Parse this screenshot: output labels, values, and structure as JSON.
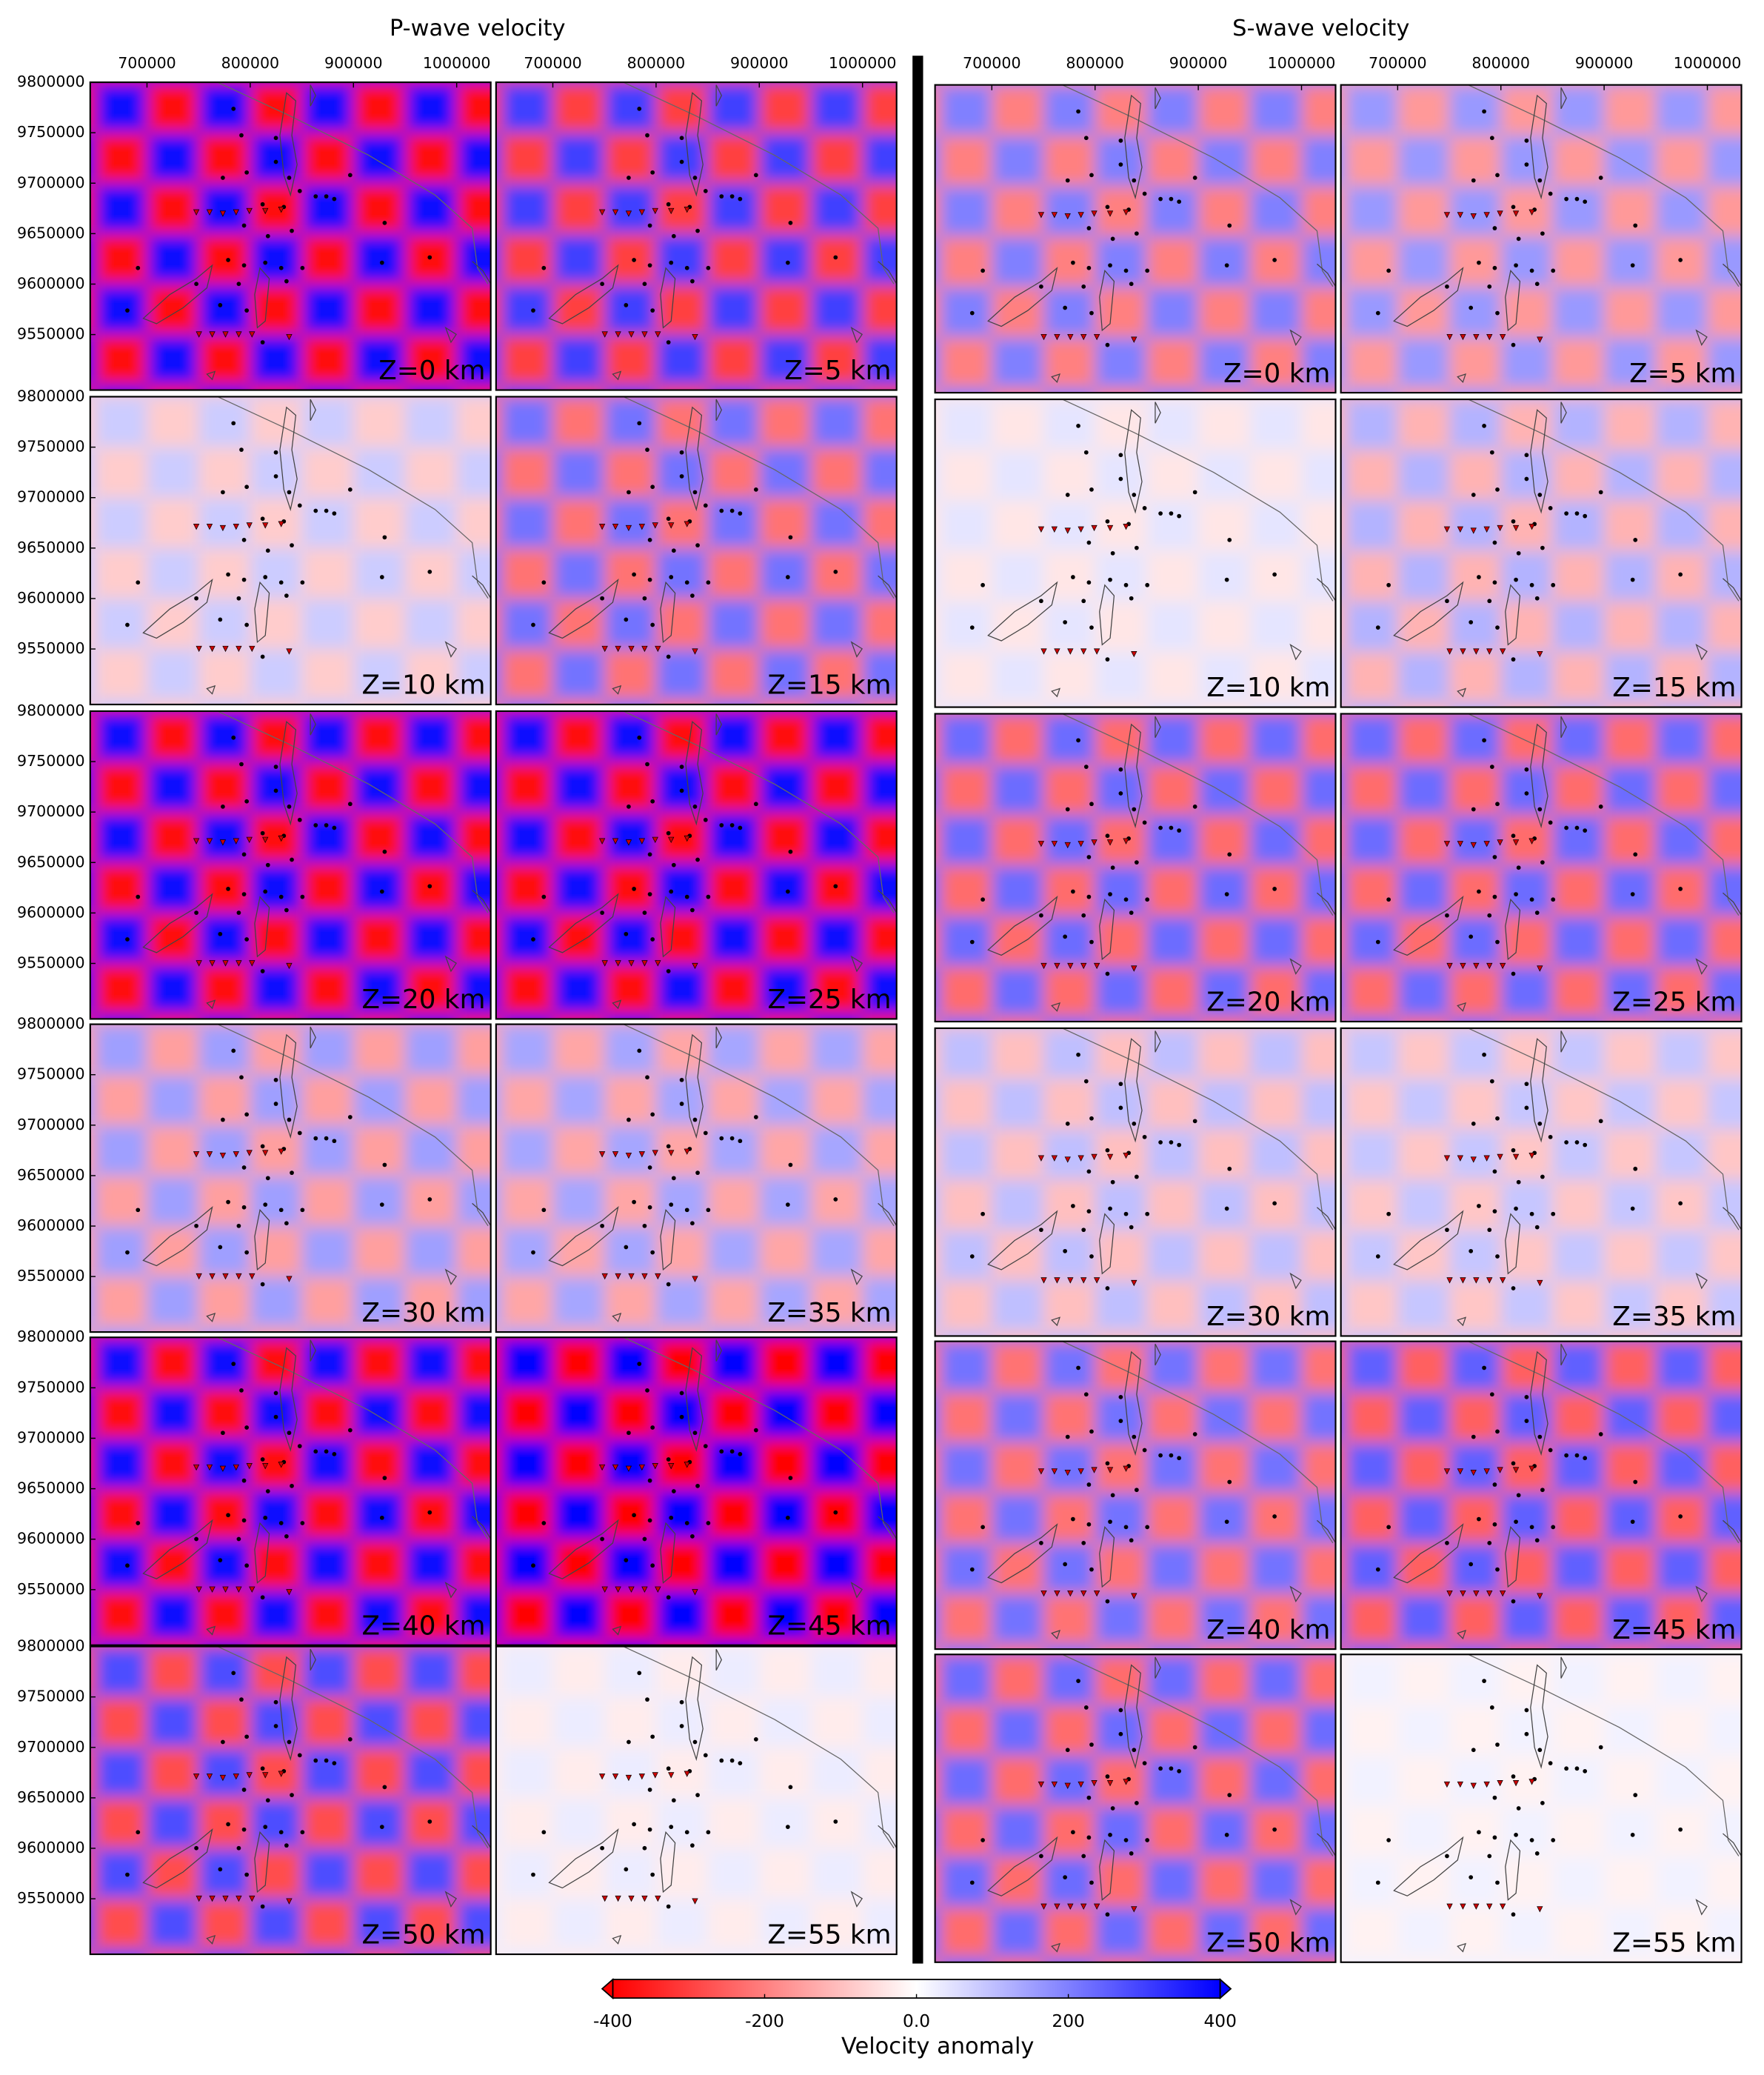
{
  "chart_data": [
    {
      "type": "heatmap",
      "title": "P-wave velocity",
      "xlim": [
        645000,
        1033000
      ],
      "ylim": [
        9495000,
        9800000
      ],
      "xticks": [
        700000,
        800000,
        900000,
        1000000
      ],
      "yticks": [
        9550000,
        9600000,
        9650000,
        9700000,
        9750000,
        9800000
      ],
      "cell_size": 50000,
      "panels": [
        {
          "label": "Z=0 km",
          "amplitude": 380
        },
        {
          "label": "Z=5 km",
          "amplitude": 300
        },
        {
          "label": "Z=10 km",
          "amplitude": 80
        },
        {
          "label": "Z=15 km",
          "amplitude": 220
        },
        {
          "label": "Z=20 km",
          "amplitude": 380
        },
        {
          "label": "Z=25 km",
          "amplitude": 380
        },
        {
          "label": "Z=30 km",
          "amplitude": 150
        },
        {
          "label": "Z=35 km",
          "amplitude": 140
        },
        {
          "label": "Z=40 km",
          "amplitude": 380
        },
        {
          "label": "Z=45 km",
          "amplitude": 400
        },
        {
          "label": "Z=50 km",
          "amplitude": 280
        },
        {
          "label": "Z=55 km",
          "amplitude": 30
        }
      ]
    },
    {
      "type": "heatmap",
      "title": "S-wave velocity",
      "xlim": [
        645000,
        1033000
      ],
      "ylim": [
        9495000,
        9800000
      ],
      "xticks": [
        700000,
        800000,
        900000,
        1000000
      ],
      "yticks": [
        9550000,
        9600000,
        9650000,
        9700000,
        9750000,
        9800000
      ],
      "cell_size": 50000,
      "panels": [
        {
          "label": "Z=0 km",
          "amplitude": 200
        },
        {
          "label": "Z=5 km",
          "amplitude": 160
        },
        {
          "label": "Z=10 km",
          "amplitude": 40
        },
        {
          "label": "Z=15 km",
          "amplitude": 120
        },
        {
          "label": "Z=20 km",
          "amplitude": 230
        },
        {
          "label": "Z=25 km",
          "amplitude": 230
        },
        {
          "label": "Z=30 km",
          "amplitude": 100
        },
        {
          "label": "Z=35 km",
          "amplitude": 90
        },
        {
          "label": "Z=40 km",
          "amplitude": 220
        },
        {
          "label": "Z=45 km",
          "amplitude": 250
        },
        {
          "label": "Z=50 km",
          "amplitude": 230
        },
        {
          "label": "Z=55 km",
          "amplitude": 20
        }
      ]
    }
  ],
  "colorbar": {
    "label": "Velocity anomaly",
    "lim": [
      -400,
      400
    ],
    "ticks": [
      -400,
      -200,
      {
        "value": 0,
        "label": "0.0"
      },
      200,
      400
    ],
    "colors": [
      "#ff0000",
      "#ffffff",
      "#0000ff"
    ]
  }
}
